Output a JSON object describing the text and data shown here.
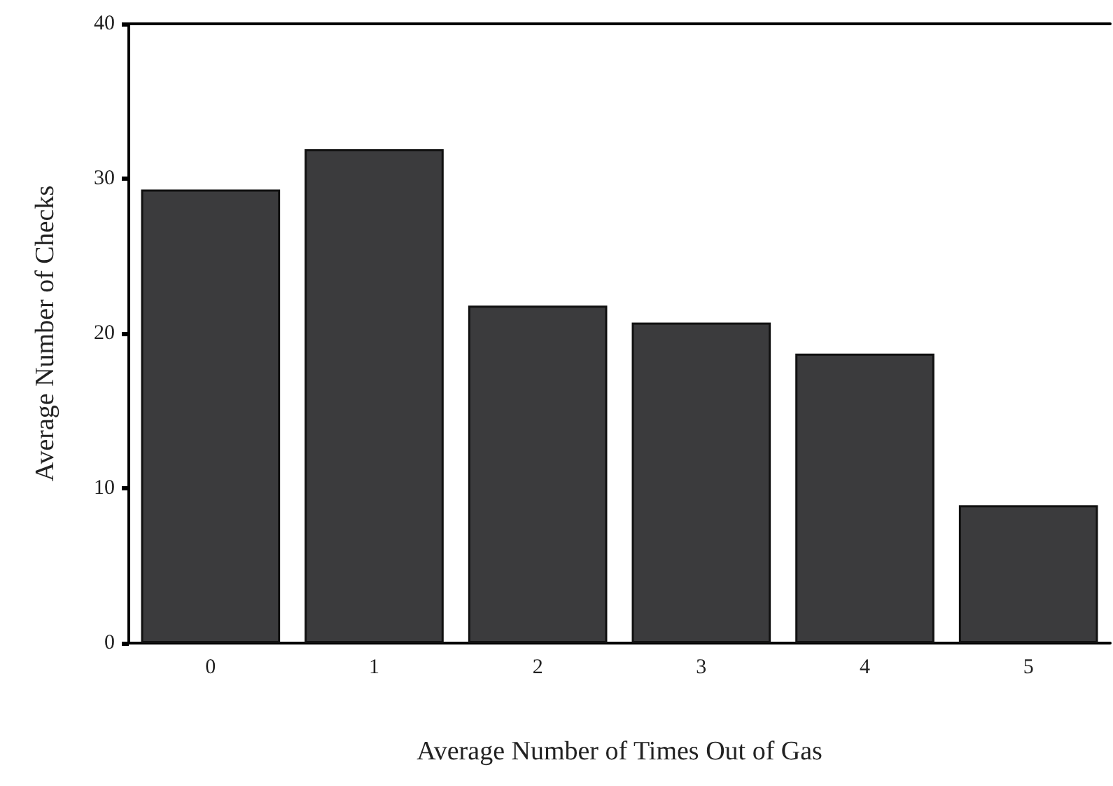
{
  "chart_data": {
    "type": "bar",
    "xlabel": "Average Number of Times Out of Gas",
    "ylabel": "Average Number of Checks",
    "categories": [
      "0",
      "1",
      "2",
      "3",
      "4",
      "5"
    ],
    "values": [
      29.3,
      31.9,
      21.8,
      20.7,
      18.7,
      8.9
    ],
    "color": "#3b3b3d",
    "ylim": [
      0,
      40
    ],
    "yticks": [
      0,
      10,
      20,
      30,
      40
    ],
    "grid": false
  }
}
